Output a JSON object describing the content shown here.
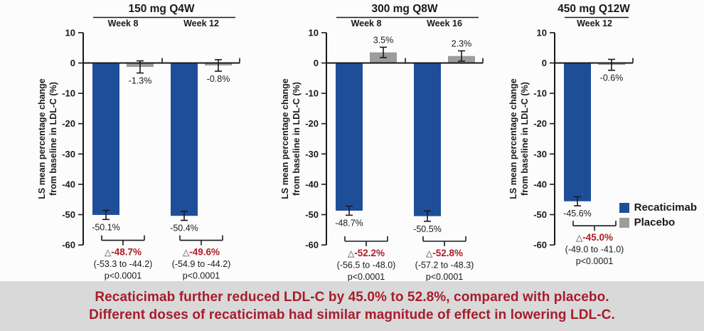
{
  "banner": {
    "line1": "Recaticimab further reduced LDL-C by 45.0% to 52.8%, compared with placebo.",
    "line2": "Different doses of recaticimab had similar magnitude of effect in lowering LDL-C.",
    "text_color": "#A81C2B",
    "bg_color": "#D9D9D9"
  },
  "legend": {
    "position": "bottom-right",
    "items": [
      {
        "label": "Recaticimab",
        "color": "#1F4E99"
      },
      {
        "label": "Placebo",
        "color": "#9C9C9C"
      }
    ]
  },
  "colors": {
    "recaticimab": "#1F4E99",
    "placebo": "#9C9C9C",
    "delta_red": "#AE1C28",
    "axis_black": "#1a1a1a",
    "triangle_gray": "#8a8a8a"
  },
  "icons": {
    "delta_triangle": "△"
  },
  "chart_data": [
    {
      "type": "bar",
      "title": "150 mg Q4W",
      "ylabel_line1": "LS mean percentage change",
      "ylabel_line2": "from baseline in LDL-C (%)",
      "ylim": [
        -60,
        10
      ],
      "yticks": [
        "10",
        "0",
        "-10",
        "-20",
        "-30",
        "-40",
        "-50",
        "-60"
      ],
      "ytick_values": [
        10,
        0,
        -10,
        -20,
        -30,
        -40,
        -50,
        -60
      ],
      "groups": [
        {
          "week": "Week 8",
          "bars": [
            {
              "series": "Recaticimab",
              "value": -50.1,
              "err": 1.5,
              "label": "-50.1%"
            },
            {
              "series": "Placebo",
              "value": -1.3,
              "err": 2.0,
              "label": "-1.3%"
            }
          ],
          "difference": {
            "delta": "-48.7%",
            "ci": "(-53.3 to -44.2)",
            "p": "p<0.0001"
          }
        },
        {
          "week": "Week 12",
          "bars": [
            {
              "series": "Recaticimab",
              "value": -50.4,
              "err": 1.5,
              "label": "-50.4%"
            },
            {
              "series": "Placebo",
              "value": -0.8,
              "err": 1.9,
              "label": "-0.8%"
            }
          ],
          "difference": {
            "delta": "-49.6%",
            "ci": "(-54.9 to -44.2)",
            "p": "p<0.0001"
          }
        }
      ]
    },
    {
      "type": "bar",
      "title": "300 mg Q8W",
      "ylabel_line1": "LS mean percentage change",
      "ylabel_line2": "from baseline in LDL-C (%)",
      "ylim": [
        -60,
        10
      ],
      "yticks": [
        "10",
        "0",
        "-10",
        "-20",
        "-30",
        "-40",
        "-50",
        "-60"
      ],
      "ytick_values": [
        10,
        0,
        -10,
        -20,
        -30,
        -40,
        -50,
        -60
      ],
      "groups": [
        {
          "week": "Week 8",
          "bars": [
            {
              "series": "Recaticimab",
              "value": -48.7,
              "err": 1.5,
              "label": "-48.7%"
            },
            {
              "series": "Placebo",
              "value": 3.5,
              "err": 1.7,
              "label": "3.5%"
            }
          ],
          "difference": {
            "delta": "-52.2%",
            "ci": "(-56.5 to -48.0)",
            "p": "p<0.0001"
          }
        },
        {
          "week": "Week 16",
          "bars": [
            {
              "series": "Recaticimab",
              "value": -50.5,
              "err": 1.7,
              "label": "-50.5%"
            },
            {
              "series": "Placebo",
              "value": 2.3,
              "err": 1.7,
              "label": "2.3%"
            }
          ],
          "difference": {
            "delta": "-52.8%",
            "ci": "(-57.2 to -48.3)",
            "p": "p<0.0001"
          }
        }
      ]
    },
    {
      "type": "bar",
      "title": "450 mg Q12W",
      "ylabel_line1": "LS mean percentage change",
      "ylabel_line2": "from baseline in LDL-C (%)",
      "ylim": [
        -60,
        10
      ],
      "yticks": [
        "10",
        "0",
        "-10",
        "-20",
        "-30",
        "-40",
        "-50",
        "-60"
      ],
      "ytick_values": [
        10,
        0,
        -10,
        -20,
        -30,
        -40,
        -50,
        -60
      ],
      "groups": [
        {
          "week": "Week 12",
          "bars": [
            {
              "series": "Recaticimab",
              "value": -45.6,
              "err": 1.5,
              "label": "-45.6%"
            },
            {
              "series": "Placebo",
              "value": -0.6,
              "err": 1.8,
              "label": "-0.6%"
            }
          ],
          "difference": {
            "delta": "-45.0%",
            "ci": "(-49.0 to -41.0)",
            "p": "p<0.0001"
          }
        }
      ]
    }
  ]
}
